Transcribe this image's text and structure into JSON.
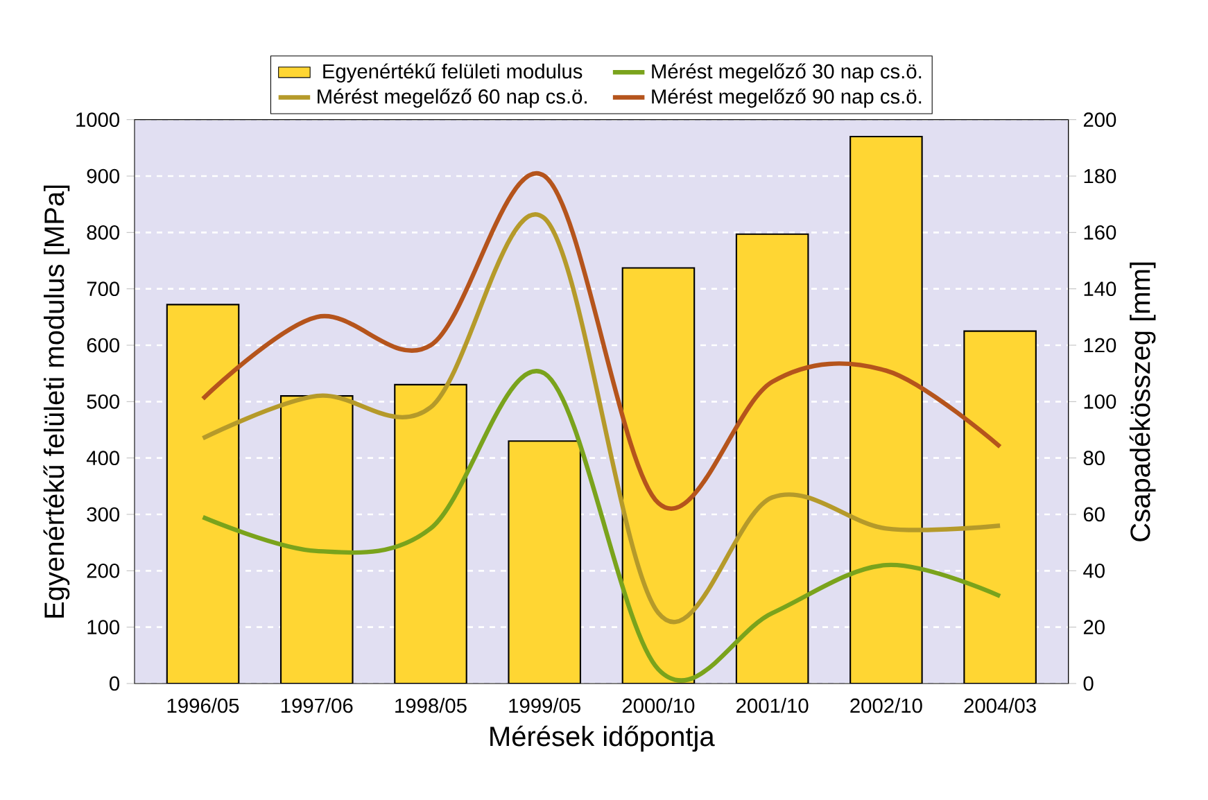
{
  "chart_data": {
    "type": "bar",
    "xlabel": "Mérések időpontja",
    "ylabel": "Egyenértékű felületi modulus [MPa]",
    "y2label": "Csapadékösszeg [mm]",
    "categories": [
      "1996/05",
      "1997/06",
      "1998/05",
      "1999/05",
      "2000/10",
      "2001/10",
      "2002/10",
      "2004/03"
    ],
    "series": [
      {
        "name": "Egyenértékű felületi modulus",
        "color": "#ffd633",
        "values": [
          672,
          510,
          530,
          430,
          737,
          797,
          970,
          625
        ]
      },
      {
        "name": "Mérést megelőző 30 nap cs.ö.",
        "type": "line",
        "axis": "y2",
        "color": "#7aa31c",
        "values": [
          59,
          47,
          55,
          110,
          5,
          25,
          42,
          31
        ]
      },
      {
        "name": "Mérést megelőző 60 nap cs.ö.",
        "type": "line",
        "axis": "y2",
        "color": "#b59a2a",
        "values": [
          87,
          102,
          98,
          165,
          25,
          66,
          55,
          56
        ]
      },
      {
        "name": "Mérést megelőző 90 nap cs.ö.",
        "type": "line",
        "axis": "y2",
        "color": "#b5541c",
        "values": [
          101,
          130,
          120,
          180,
          64,
          107,
          111,
          84
        ]
      }
    ],
    "ylim": [
      0,
      1000
    ],
    "yticks": [
      0,
      100,
      200,
      300,
      400,
      500,
      600,
      700,
      800,
      900,
      1000
    ],
    "y2lim": [
      0,
      200
    ],
    "y2ticks": [
      0,
      20,
      40,
      60,
      80,
      100,
      120,
      140,
      160,
      180,
      200
    ],
    "grid": "y",
    "legend": "top"
  }
}
